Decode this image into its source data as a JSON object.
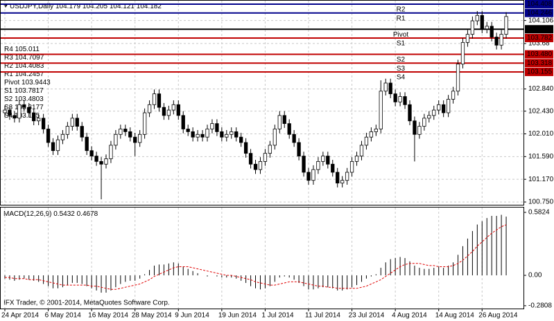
{
  "footer": "IFX Trader, © 2001-2014, MetaQuotes Software Corp.",
  "chart_data": [
    {
      "type": "candlestick",
      "symbol": "USDJPY,Daily",
      "quote": [
        104.179,
        104.205,
        104.121,
        104.182
      ],
      "up_color": "#ffffff",
      "down_color": "#000000",
      "grid": true,
      "categories": [
        "24 Apr 2014",
        null,
        null,
        null,
        null,
        null,
        null,
        null,
        null,
        "6 May 2014",
        null,
        null,
        null,
        null,
        null,
        null,
        null,
        null,
        "16 May 2014",
        null,
        null,
        null,
        null,
        null,
        null,
        null,
        null,
        "28 May 2014",
        null,
        null,
        null,
        null,
        null,
        null,
        null,
        null,
        "9 Jun 2014",
        null,
        null,
        null,
        null,
        null,
        null,
        null,
        null,
        "19 Jun 2014",
        null,
        null,
        null,
        null,
        null,
        null,
        null,
        null,
        "1 Jul 2014",
        null,
        null,
        null,
        null,
        null,
        null,
        null,
        null,
        "11 Jul 2014",
        null,
        null,
        null,
        null,
        null,
        null,
        null,
        null,
        "23 Jul 2014",
        null,
        null,
        null,
        null,
        null,
        null,
        null,
        null,
        "4 Aug 2014",
        null,
        null,
        null,
        null,
        null,
        null,
        null,
        null,
        "14 Aug 2014",
        null,
        null,
        null,
        null,
        null,
        null,
        null,
        null,
        "26 Aug 2014",
        null,
        null,
        null,
        null,
        null
      ],
      "candles": [
        [
          102.4,
          102.53,
          102.32,
          102.45
        ],
        [
          102.45,
          102.53,
          102.27,
          102.35
        ],
        [
          102.35,
          102.43,
          102.22,
          102.3
        ],
        [
          102.3,
          102.63,
          102.22,
          102.55
        ],
        [
          102.55,
          102.63,
          102.42,
          102.5
        ],
        [
          102.5,
          102.58,
          102.32,
          102.4
        ],
        [
          102.4,
          102.48,
          102.17,
          102.25
        ],
        [
          102.25,
          102.38,
          102.17,
          102.3
        ],
        [
          102.3,
          102.38,
          102.02,
          102.1
        ],
        [
          102.1,
          102.18,
          101.77,
          101.85
        ],
        [
          101.85,
          101.93,
          101.62,
          101.7
        ],
        [
          101.7,
          101.98,
          101.62,
          101.9
        ],
        [
          101.9,
          102.08,
          101.82,
          102.0
        ],
        [
          102.0,
          102.23,
          101.92,
          102.15
        ],
        [
          102.15,
          102.38,
          102.07,
          102.3
        ],
        [
          102.3,
          102.38,
          102.07,
          102.15
        ],
        [
          102.15,
          102.23,
          101.87,
          101.95
        ],
        [
          101.95,
          102.03,
          101.62,
          101.7
        ],
        [
          101.7,
          101.78,
          101.52,
          101.6
        ],
        [
          101.6,
          101.68,
          101.42,
          101.5
        ],
        [
          101.5,
          101.58,
          100.8,
          101.45
        ],
        [
          101.45,
          101.63,
          101.37,
          101.55
        ],
        [
          101.55,
          101.88,
          101.47,
          101.8
        ],
        [
          101.8,
          102.08,
          101.72,
          102.0
        ],
        [
          102.0,
          102.18,
          101.92,
          102.1
        ],
        [
          102.1,
          102.18,
          101.97,
          102.05
        ],
        [
          102.05,
          102.13,
          101.87,
          101.95
        ],
        [
          101.95,
          102.03,
          101.6,
          101.85
        ],
        [
          101.85,
          102.08,
          101.77,
          102.0
        ],
        [
          102.0,
          102.48,
          101.92,
          102.4
        ],
        [
          102.4,
          102.63,
          102.32,
          102.55
        ],
        [
          102.55,
          102.83,
          102.47,
          102.75
        ],
        [
          102.75,
          102.83,
          102.42,
          102.5
        ],
        [
          102.5,
          102.58,
          102.27,
          102.35
        ],
        [
          102.35,
          102.53,
          102.27,
          102.45
        ],
        [
          102.45,
          102.63,
          102.37,
          102.55
        ],
        [
          102.55,
          102.63,
          102.27,
          102.35
        ],
        [
          102.35,
          102.43,
          102.02,
          102.1
        ],
        [
          102.1,
          102.18,
          101.97,
          102.05
        ],
        [
          102.05,
          102.13,
          101.87,
          101.95
        ],
        [
          101.95,
          102.08,
          101.87,
          102.0
        ],
        [
          102.0,
          102.08,
          101.87,
          101.95
        ],
        [
          101.95,
          102.18,
          101.87,
          102.1
        ],
        [
          102.1,
          102.28,
          102.02,
          102.2
        ],
        [
          102.2,
          102.28,
          101.97,
          102.05
        ],
        [
          102.05,
          102.13,
          101.87,
          101.95
        ],
        [
          101.95,
          102.08,
          101.87,
          102.0
        ],
        [
          102.0,
          102.13,
          101.92,
          102.05
        ],
        [
          102.05,
          102.13,
          101.87,
          101.95
        ],
        [
          101.95,
          102.03,
          101.77,
          101.85
        ],
        [
          101.85,
          101.93,
          101.57,
          101.65
        ],
        [
          101.65,
          101.73,
          101.37,
          101.45
        ],
        [
          101.45,
          101.53,
          101.27,
          101.35
        ],
        [
          101.35,
          101.58,
          101.27,
          101.5
        ],
        [
          101.5,
          101.73,
          101.42,
          101.65
        ],
        [
          101.65,
          101.88,
          101.57,
          101.8
        ],
        [
          101.8,
          102.18,
          101.72,
          102.1
        ],
        [
          102.1,
          102.43,
          102.02,
          102.35
        ],
        [
          102.35,
          102.43,
          102.12,
          102.2
        ],
        [
          102.2,
          102.28,
          101.92,
          102.0
        ],
        [
          102.0,
          102.08,
          101.77,
          101.85
        ],
        [
          101.85,
          101.93,
          101.52,
          101.6
        ],
        [
          101.6,
          101.68,
          101.22,
          101.3
        ],
        [
          101.3,
          101.38,
          101.07,
          101.15
        ],
        [
          101.15,
          101.43,
          101.07,
          101.35
        ],
        [
          101.35,
          101.58,
          101.27,
          101.5
        ],
        [
          101.5,
          101.68,
          101.42,
          101.6
        ],
        [
          101.6,
          101.68,
          101.37,
          101.45
        ],
        [
          101.45,
          101.53,
          101.22,
          101.3
        ],
        [
          101.3,
          101.38,
          101.02,
          101.1
        ],
        [
          101.1,
          101.23,
          101.02,
          101.15
        ],
        [
          101.15,
          101.38,
          101.07,
          101.3
        ],
        [
          101.3,
          101.58,
          101.22,
          101.5
        ],
        [
          101.5,
          101.68,
          101.42,
          101.6
        ],
        [
          101.6,
          101.88,
          101.52,
          101.8
        ],
        [
          101.8,
          102.03,
          101.72,
          101.95
        ],
        [
          101.95,
          102.13,
          101.87,
          102.05
        ],
        [
          102.05,
          102.18,
          101.97,
          102.1
        ],
        [
          102.1,
          103.0,
          102.02,
          102.8
        ],
        [
          102.8,
          103.03,
          102.72,
          102.95
        ],
        [
          102.95,
          103.03,
          102.67,
          102.75
        ],
        [
          102.75,
          102.83,
          102.52,
          102.6
        ],
        [
          102.6,
          102.78,
          102.52,
          102.7
        ],
        [
          102.7,
          102.78,
          102.47,
          102.55
        ],
        [
          102.55,
          102.63,
          102.17,
          102.25
        ],
        [
          102.25,
          102.33,
          101.5,
          102.0
        ],
        [
          102.0,
          102.23,
          101.92,
          102.15
        ],
        [
          102.15,
          102.38,
          102.07,
          102.3
        ],
        [
          102.3,
          102.43,
          102.22,
          102.35
        ],
        [
          102.35,
          102.53,
          102.27,
          102.45
        ],
        [
          102.45,
          102.63,
          102.37,
          102.55
        ],
        [
          102.55,
          102.63,
          102.32,
          102.4
        ],
        [
          102.4,
          102.73,
          102.32,
          102.65
        ],
        [
          102.65,
          102.88,
          102.57,
          102.8
        ],
        [
          102.8,
          103.38,
          102.72,
          103.3
        ],
        [
          103.3,
          103.78,
          103.22,
          103.7
        ],
        [
          103.7,
          103.93,
          103.62,
          103.85
        ],
        [
          103.85,
          104.18,
          103.77,
          104.1
        ],
        [
          104.1,
          104.28,
          104.02,
          104.2
        ],
        [
          104.2,
          104.28,
          103.87,
          103.95
        ],
        [
          103.95,
          104.08,
          103.87,
          104.0
        ],
        [
          104.0,
          104.08,
          103.72,
          103.8
        ],
        [
          103.8,
          103.88,
          103.57,
          103.65
        ],
        [
          103.65,
          103.93,
          103.57,
          103.85
        ],
        [
          103.85,
          104.26,
          103.77,
          104.18
        ]
      ],
      "ylim": [
        100.699,
        104.472
      ],
      "yticks": [
        104.106,
        103.68,
        {
          "value": 102.84,
          "label": "102.840"
        },
        {
          "value": 102.43,
          "label": "102.430"
        },
        {
          "value": 102.01,
          "label": "102.010"
        },
        {
          "value": 101.59,
          "label": "101.590"
        },
        {
          "value": 101.17,
          "label": "101.170"
        },
        {
          "value": 100.75,
          "label": "100.750"
        }
      ],
      "pivot_text_color": "#cc0000",
      "pivots": [
        {
          "name": "R4",
          "value": 105.011,
          "label": "105.011",
          "color": "#00008b"
        },
        {
          "name": "R3",
          "value": 104.7097,
          "label": "104.710",
          "color": "#00008b"
        },
        {
          "name": "R2",
          "value": 104.4083,
          "label": "104.408",
          "color": "#00008b"
        },
        {
          "name": "R1",
          "value": 104.2457,
          "label": "104.246",
          "color": "#00008b"
        },
        {
          "name": "Pivot",
          "value": 103.9443,
          "label": "103.944",
          "color": "#000000"
        },
        {
          "name": "S1",
          "value": 103.7817,
          "label": "103.782",
          "color": "#c00000"
        },
        {
          "name": "S2",
          "value": 103.4803,
          "label": "103.480",
          "color": "#c00000"
        },
        {
          "name": "S3",
          "value": 103.3177,
          "label": "103.318",
          "color": "#c00000"
        },
        {
          "name": "S4",
          "value": 103.155,
          "label": "103.155",
          "color": "#c00000"
        }
      ]
    },
    {
      "type": "macd",
      "title": "MACD(12,26,9)",
      "color": "#000000",
      "signal_color": "#e00000",
      "ylim": [
        -0.307,
        0.627
      ],
      "yticks": [
        0.5824,
        {
          "value": 0,
          "label": "0.00"
        },
        -0.2808
      ],
      "histogram": [
        -0.03,
        -0.04,
        -0.05,
        -0.04,
        -0.03,
        -0.04,
        -0.05,
        -0.06,
        -0.08,
        -0.1,
        -0.12,
        -0.12,
        -0.11,
        -0.09,
        -0.07,
        -0.07,
        -0.08,
        -0.1,
        -0.12,
        -0.14,
        -0.16,
        -0.16,
        -0.14,
        -0.11,
        -0.08,
        -0.06,
        -0.05,
        -0.05,
        -0.03,
        0.01,
        0.05,
        0.09,
        0.1,
        0.1,
        0.11,
        0.12,
        0.11,
        0.08,
        0.06,
        0.04,
        0.02,
        0.0,
        -0.01,
        0.0,
        -0.01,
        -0.02,
        -0.02,
        -0.02,
        -0.03,
        -0.05,
        -0.07,
        -0.1,
        -0.12,
        -0.13,
        -0.12,
        -0.1,
        -0.06,
        -0.02,
        -0.01,
        -0.02,
        -0.04,
        -0.07,
        -0.1,
        -0.13,
        -0.13,
        -0.12,
        -0.11,
        -0.11,
        -0.12,
        -0.14,
        -0.14,
        -0.13,
        -0.11,
        -0.09,
        -0.06,
        -0.03,
        -0.01,
        0.01,
        0.07,
        0.12,
        0.15,
        0.16,
        0.17,
        0.16,
        0.13,
        0.09,
        0.07,
        0.06,
        0.06,
        0.07,
        0.08,
        0.07,
        0.09,
        0.12,
        0.19,
        0.27,
        0.34,
        0.41,
        0.47,
        0.5,
        0.53,
        0.55,
        0.55,
        0.56,
        0.5432
      ],
      "signal": [
        -0.02,
        -0.02,
        -0.03,
        -0.03,
        -0.03,
        -0.04,
        -0.04,
        -0.04,
        -0.05,
        -0.06,
        -0.07,
        -0.08,
        -0.09,
        -0.09,
        -0.09,
        -0.09,
        -0.09,
        -0.09,
        -0.1,
        -0.1,
        -0.11,
        -0.12,
        -0.13,
        -0.13,
        -0.12,
        -0.11,
        -0.1,
        -0.09,
        -0.08,
        -0.06,
        -0.04,
        -0.01,
        0.01,
        0.03,
        0.05,
        0.07,
        0.08,
        0.08,
        0.08,
        0.07,
        0.06,
        0.05,
        0.04,
        0.03,
        0.02,
        0.01,
        0.0,
        0.0,
        -0.01,
        -0.02,
        -0.03,
        -0.04,
        -0.06,
        -0.07,
        -0.08,
        -0.09,
        -0.09,
        -0.08,
        -0.07,
        -0.06,
        -0.06,
        -0.06,
        -0.07,
        -0.08,
        -0.09,
        -0.1,
        -0.1,
        -0.11,
        -0.11,
        -0.12,
        -0.12,
        -0.12,
        -0.12,
        -0.12,
        -0.11,
        -0.1,
        -0.08,
        -0.06,
        -0.04,
        -0.01,
        0.02,
        0.05,
        0.08,
        0.1,
        0.11,
        0.11,
        0.11,
        0.1,
        0.09,
        0.09,
        0.08,
        0.08,
        0.08,
        0.09,
        0.11,
        0.14,
        0.18,
        0.22,
        0.27,
        0.31,
        0.35,
        0.39,
        0.42,
        0.45,
        0.4678
      ]
    }
  ]
}
